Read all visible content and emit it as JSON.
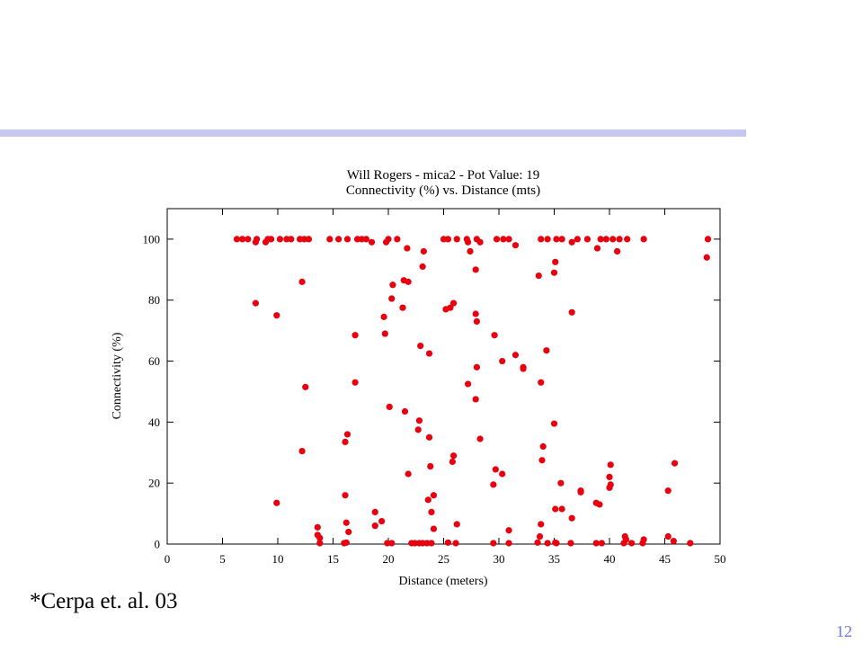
{
  "slide": {
    "citation": "*Cerpa et. al. 03",
    "page_number": "12",
    "accent_color": "#c6c8f0",
    "page_number_color": "#6e74d8"
  },
  "chart_data": {
    "type": "scatter",
    "title": "Will Rogers - mica2 - Pot Value: 19",
    "subtitle": "Connectivity (%) vs. Distance (mts)",
    "xlabel": "Distance (meters)",
    "ylabel": "Connectivity (%)",
    "xlim": [
      0,
      50
    ],
    "ylim": [
      0,
      110
    ],
    "xticks": [
      0,
      5,
      10,
      15,
      20,
      25,
      30,
      35,
      40,
      45,
      50
    ],
    "yticks": [
      0,
      20,
      40,
      60,
      80,
      100
    ],
    "grid": false,
    "legend": "none",
    "marker_color": "#e8000e",
    "points": [
      [
        6.3,
        100
      ],
      [
        6.8,
        100
      ],
      [
        7.3,
        100
      ],
      [
        8.0,
        99
      ],
      [
        8.1,
        100
      ],
      [
        8.9,
        99
      ],
      [
        9.1,
        100
      ],
      [
        9.4,
        100
      ],
      [
        10.2,
        100
      ],
      [
        10.8,
        100
      ],
      [
        11.2,
        100
      ],
      [
        12.0,
        100
      ],
      [
        12.4,
        100
      ],
      [
        12.8,
        100
      ],
      [
        14.7,
        100
      ],
      [
        15.5,
        100
      ],
      [
        16.3,
        100
      ],
      [
        17.2,
        100
      ],
      [
        17.6,
        100
      ],
      [
        18.0,
        100
      ],
      [
        18.5,
        99
      ],
      [
        19.8,
        99
      ],
      [
        20.0,
        100
      ],
      [
        20.8,
        100
      ],
      [
        21.7,
        97
      ],
      [
        23.2,
        96
      ],
      [
        25.0,
        100
      ],
      [
        25.4,
        100
      ],
      [
        26.2,
        100
      ],
      [
        27.1,
        100
      ],
      [
        27.2,
        99
      ],
      [
        28.0,
        100
      ],
      [
        28.3,
        99
      ],
      [
        29.8,
        100
      ],
      [
        30.4,
        100
      ],
      [
        30.9,
        100
      ],
      [
        31.5,
        98
      ],
      [
        33.8,
        100
      ],
      [
        34.4,
        100
      ],
      [
        35.2,
        100
      ],
      [
        35.7,
        100
      ],
      [
        36.6,
        99
      ],
      [
        37.1,
        100
      ],
      [
        38.0,
        100
      ],
      [
        38.9,
        97
      ],
      [
        39.2,
        100
      ],
      [
        39.7,
        100
      ],
      [
        40.3,
        100
      ],
      [
        40.7,
        96
      ],
      [
        40.9,
        100
      ],
      [
        41.6,
        100
      ],
      [
        43.1,
        100
      ],
      [
        48.9,
        100
      ],
      [
        48.8,
        94
      ],
      [
        8.0,
        79
      ],
      [
        9.9,
        75
      ],
      [
        12.2,
        86
      ],
      [
        12.5,
        51.5
      ],
      [
        12.2,
        30.5
      ],
      [
        9.9,
        13.5
      ],
      [
        17.0,
        68.5
      ],
      [
        17.0,
        53
      ],
      [
        16.3,
        36
      ],
      [
        16.1,
        33.5
      ],
      [
        16.1,
        16
      ],
      [
        16.2,
        7
      ],
      [
        16.4,
        4
      ],
      [
        16.2,
        0.5
      ],
      [
        16.0,
        0.3
      ],
      [
        13.6,
        5.5
      ],
      [
        13.6,
        3
      ],
      [
        13.8,
        2
      ],
      [
        13.8,
        0.3
      ],
      [
        18.8,
        10.5
      ],
      [
        18.8,
        6
      ],
      [
        19.4,
        7.5
      ],
      [
        19.6,
        74.5
      ],
      [
        19.7,
        69
      ],
      [
        20.4,
        85
      ],
      [
        20.3,
        80.5
      ],
      [
        20.1,
        45
      ],
      [
        19.9,
        0.3
      ],
      [
        20.3,
        0.3
      ],
      [
        21.4,
        86.5
      ],
      [
        21.8,
        86
      ],
      [
        21.3,
        77.5
      ],
      [
        21.5,
        43.5
      ],
      [
        21.8,
        23
      ],
      [
        22.1,
        0.3
      ],
      [
        22.4,
        0.3
      ],
      [
        22.9,
        65
      ],
      [
        23.1,
        91
      ],
      [
        22.8,
        40.5
      ],
      [
        22.7,
        37.5
      ],
      [
        22.8,
        0.3
      ],
      [
        23.1,
        0.3
      ],
      [
        23.7,
        62.5
      ],
      [
        23.7,
        35
      ],
      [
        23.8,
        25.5
      ],
      [
        23.6,
        14.5
      ],
      [
        23.9,
        10.5
      ],
      [
        24.1,
        16
      ],
      [
        24.1,
        5
      ],
      [
        23.5,
        0.3
      ],
      [
        23.9,
        0.3
      ],
      [
        25.2,
        77
      ],
      [
        25.6,
        77.5
      ],
      [
        25.9,
        79
      ],
      [
        25.8,
        27
      ],
      [
        25.9,
        29
      ],
      [
        26.2,
        6.5
      ],
      [
        25.4,
        0.5
      ],
      [
        26.1,
        0.3
      ],
      [
        27.2,
        52.5
      ],
      [
        27.4,
        96
      ],
      [
        27.9,
        75.5
      ],
      [
        28.0,
        73
      ],
      [
        28.0,
        58
      ],
      [
        27.9,
        90
      ],
      [
        27.9,
        47.5
      ],
      [
        28.3,
        34.5
      ],
      [
        29.6,
        68.5
      ],
      [
        29.7,
        24.5
      ],
      [
        29.5,
        19.5
      ],
      [
        29.5,
        0.3
      ],
      [
        30.3,
        60
      ],
      [
        30.3,
        23
      ],
      [
        30.9,
        4.5
      ],
      [
        30.9,
        0.3
      ],
      [
        31.5,
        62
      ],
      [
        32.2,
        58
      ],
      [
        32.2,
        57.5
      ],
      [
        33.6,
        88
      ],
      [
        33.8,
        53
      ],
      [
        34.0,
        32
      ],
      [
        33.9,
        27.5
      ],
      [
        33.8,
        6.5
      ],
      [
        33.7,
        2.5
      ],
      [
        33.5,
        0.5
      ],
      [
        34.4,
        0.3
      ],
      [
        34.3,
        63.5
      ],
      [
        35.1,
        92.5
      ],
      [
        35.0,
        89
      ],
      [
        35.0,
        39.5
      ],
      [
        35.1,
        11.5
      ],
      [
        35.6,
        20
      ],
      [
        35.7,
        11.5
      ],
      [
        35.1,
        0.5
      ],
      [
        35.2,
        0.3
      ],
      [
        36.6,
        76
      ],
      [
        36.6,
        8.5
      ],
      [
        36.5,
        0.3
      ],
      [
        37.4,
        17.5
      ],
      [
        37.4,
        17
      ],
      [
        38.8,
        13.5
      ],
      [
        39.1,
        13
      ],
      [
        38.8,
        0.3
      ],
      [
        39.3,
        0.3
      ],
      [
        40.1,
        26
      ],
      [
        40.0,
        22
      ],
      [
        40.0,
        18.5
      ],
      [
        40.1,
        19.5
      ],
      [
        41.4,
        2.5
      ],
      [
        41.5,
        1.5
      ],
      [
        41.3,
        0.3
      ],
      [
        42.0,
        0.3
      ],
      [
        43.1,
        1.5
      ],
      [
        43.0,
        0.3
      ],
      [
        45.3,
        17.5
      ],
      [
        45.3,
        2.5
      ],
      [
        45.9,
        26.5
      ],
      [
        45.8,
        1
      ],
      [
        47.3,
        0.3
      ]
    ]
  }
}
